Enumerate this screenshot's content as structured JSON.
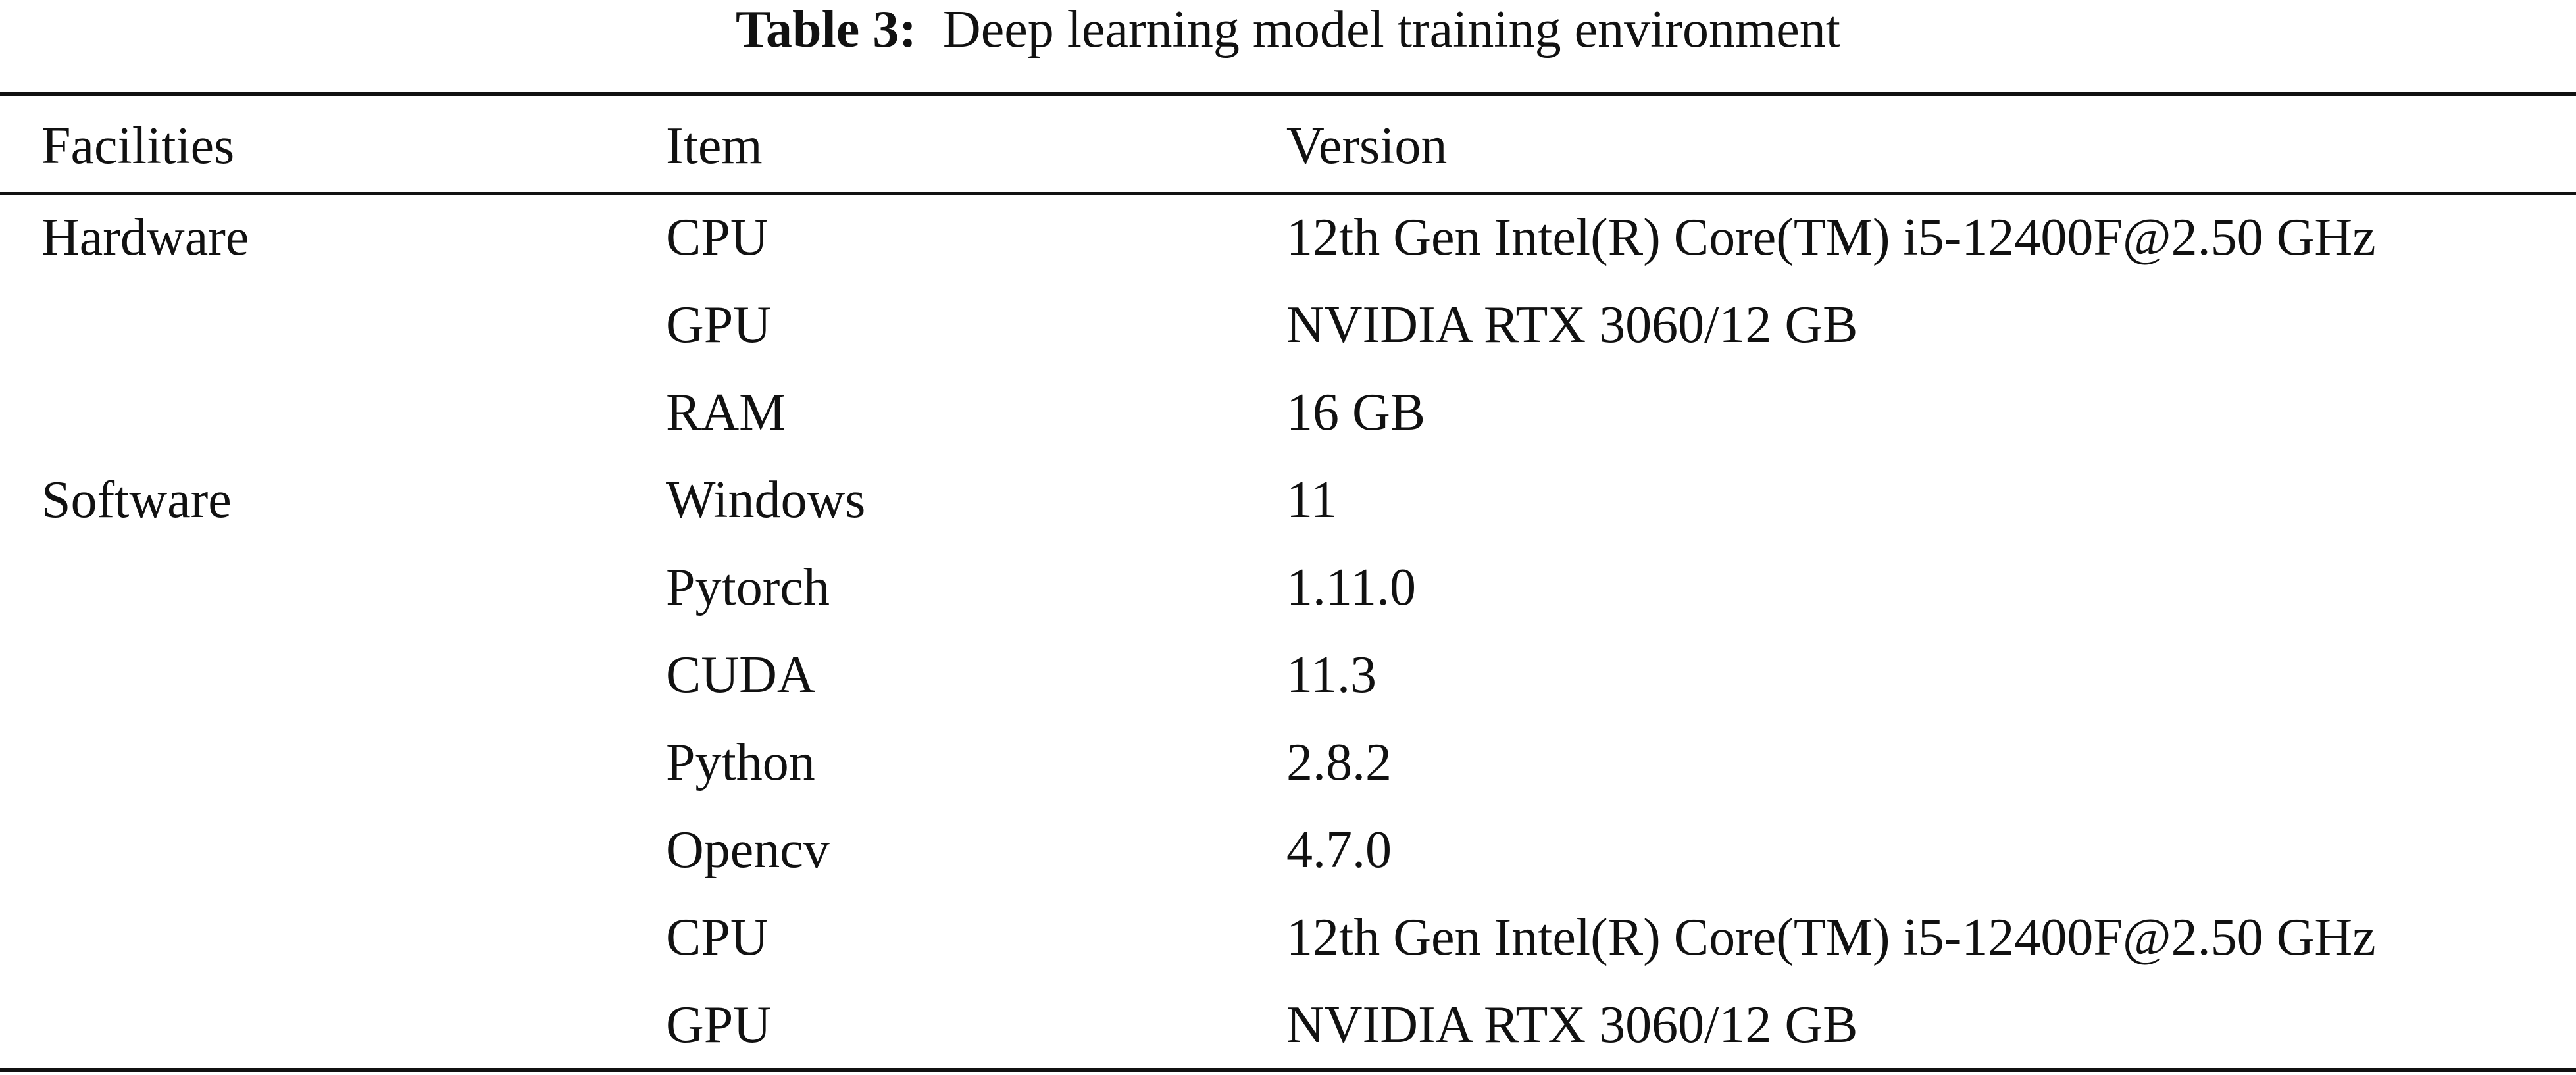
{
  "caption": {
    "label": "Table 3:",
    "text": "Deep learning model training environment"
  },
  "table": {
    "headers": [
      "Facilities",
      "Item",
      "Version"
    ],
    "rows": [
      {
        "facility": "Hardware",
        "item": "CPU",
        "version": "12th Gen Intel(R) Core(TM) i5-12400F@2.50 GHz"
      },
      {
        "facility": "",
        "item": "GPU",
        "version": "NVIDIA RTX 3060/12 GB"
      },
      {
        "facility": "",
        "item": "RAM",
        "version": "16 GB"
      },
      {
        "facility": "Software",
        "item": "Windows",
        "version": "11"
      },
      {
        "facility": "",
        "item": "Pytorch",
        "version": "1.11.0"
      },
      {
        "facility": "",
        "item": "CUDA",
        "version": "11.3"
      },
      {
        "facility": "",
        "item": "Python",
        "version": "2.8.2"
      },
      {
        "facility": "",
        "item": "Opencv",
        "version": "4.7.0"
      },
      {
        "facility": "",
        "item": "CPU",
        "version": "12th Gen Intel(R) Core(TM) i5-12400F@2.50 GHz"
      },
      {
        "facility": "",
        "item": "GPU",
        "version": "NVIDIA RTX 3060/12 GB"
      }
    ]
  }
}
